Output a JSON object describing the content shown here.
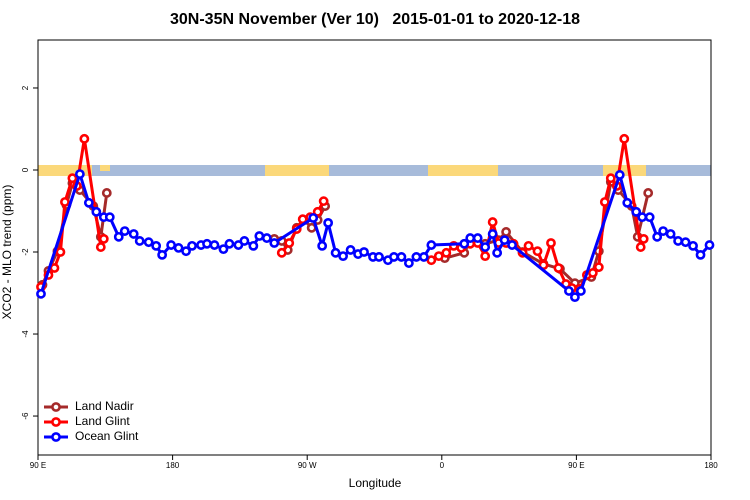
{
  "chart_data": {
    "type": "line",
    "title": "30N-35N November (Ver 10)   2015-01-01 to 2020-12-18",
    "x_label": "Longitude",
    "y_label": "XCO2 - MLO trend (ppm)",
    "xlim": [
      90,
      540
    ],
    "xticks": [
      {
        "value": 90,
        "label": "90 E"
      },
      {
        "value": 180,
        "label": "180"
      },
      {
        "value": 270,
        "label": "90 W"
      },
      {
        "value": 360,
        "label": "0"
      },
      {
        "value": 450,
        "label": "90 E"
      },
      {
        "value": 540,
        "label": "180"
      }
    ],
    "ylim": [
      -6.95,
      3.17
    ],
    "yticks": [
      -6,
      -4,
      -2,
      0,
      2
    ],
    "legend": "bottom left",
    "series": [
      {
        "name": "Land Nadir",
        "color": "#a52a2a",
        "x": [
          93,
          97,
          103,
          109,
          113,
          118,
          127,
          132,
          136,
          null,
          248,
          253,
          257,
          263,
          268,
          273,
          277,
          282,
          null,
          362,
          375,
          379,
          389,
          398,
          403,
          414,
          428,
          439,
          449,
          460,
          465,
          473,
          478,
          487,
          491,
          498
        ],
        "values": [
          -2.8,
          -2.46,
          -1.98,
          -0.85,
          -0.32,
          -0.49,
          -0.88,
          -1.63,
          -0.56,
          null,
          -1.68,
          -1.73,
          -1.95,
          -1.41,
          -1.22,
          -1.41,
          -1.22,
          -0.88,
          null,
          -2.15,
          -2.02,
          -1.71,
          -1.8,
          -1.71,
          -1.51,
          -2.0,
          -2.29,
          -2.41,
          -2.76,
          -2.61,
          -1.98,
          -0.29,
          -0.49,
          -0.88,
          -1.63,
          -0.56
        ]
      },
      {
        "name": "Land Glint",
        "color": "#ff0000",
        "x": [
          92,
          97,
          101,
          105,
          108,
          113,
          116,
          121,
          132,
          134,
          null,
          253,
          258,
          263,
          267,
          272,
          277,
          281,
          null,
          353,
          358,
          363,
          368,
          373,
          379,
          384,
          389,
          394,
          398,
          403,
          408,
          414,
          418,
          424,
          428,
          433,
          438,
          443,
          447,
          452,
          457,
          461,
          465,
          469,
          473,
          477,
          482,
          493,
          495
        ],
        "values": [
          -2.85,
          -2.56,
          -2.39,
          -2.0,
          -0.78,
          -0.2,
          -0.39,
          0.76,
          -1.88,
          -1.68,
          null,
          -2.02,
          -1.78,
          -1.44,
          -1.2,
          -1.15,
          -1.02,
          -0.76,
          null,
          -2.2,
          -2.1,
          -2.02,
          -1.85,
          -1.9,
          -1.8,
          -1.78,
          -2.1,
          -1.27,
          -1.78,
          -1.78,
          -1.8,
          -2.02,
          -1.85,
          -1.98,
          -2.32,
          -1.78,
          -2.39,
          -2.78,
          -2.88,
          -2.9,
          -2.56,
          -2.51,
          -2.37,
          -0.78,
          -0.2,
          -0.39,
          0.76,
          -1.88,
          -1.68
        ]
      },
      {
        "name": "Ocean Glint",
        "color": "#0000ff",
        "x": [
          92,
          118,
          124,
          129,
          134,
          138,
          144,
          148,
          154,
          158,
          164,
          169,
          173,
          179,
          184,
          189,
          193,
          199,
          203,
          208,
          214,
          218,
          224,
          228,
          234,
          238,
          243,
          248,
          274,
          280,
          284,
          289,
          294,
          299,
          304,
          308,
          314,
          318,
          324,
          328,
          333,
          338,
          343,
          348,
          353,
          375,
          379,
          384,
          389,
          394,
          397,
          402,
          407,
          445,
          449,
          453,
          479,
          484,
          490,
          494,
          499,
          504,
          508,
          513,
          518,
          523,
          528,
          533,
          539
        ],
        "values": [
          -3.02,
          -0.1,
          -0.8,
          -1.02,
          -1.15,
          -1.15,
          -1.63,
          -1.49,
          -1.56,
          -1.73,
          -1.76,
          -1.85,
          -2.07,
          -1.83,
          -1.9,
          -1.98,
          -1.85,
          -1.83,
          -1.8,
          -1.83,
          -1.93,
          -1.8,
          -1.83,
          -1.73,
          -1.85,
          -1.61,
          -1.66,
          -1.78,
          -1.17,
          -1.85,
          -1.29,
          -2.02,
          -2.1,
          -1.95,
          -2.05,
          -2.0,
          -2.12,
          -2.12,
          -2.2,
          -2.12,
          -2.12,
          -2.27,
          -2.12,
          -2.12,
          -1.83,
          -1.8,
          -1.66,
          -1.66,
          -1.88,
          -1.56,
          -2.02,
          -1.71,
          -1.83,
          -2.95,
          -3.1,
          -2.95,
          -0.12,
          -0.8,
          -1.02,
          -1.15,
          -1.15,
          -1.63,
          -1.49,
          -1.56,
          -1.73,
          -1.76,
          -1.85,
          -2.07,
          -1.83
        ]
      }
    ]
  }
}
